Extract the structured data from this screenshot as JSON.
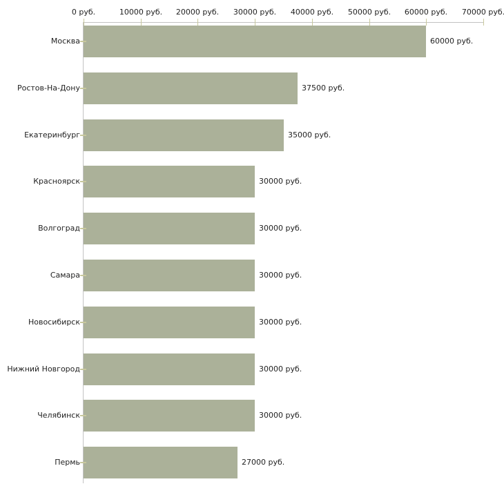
{
  "chart_data": {
    "type": "bar",
    "orientation": "horizontal",
    "title": "",
    "xlabel": "",
    "ylabel": "",
    "grid": false,
    "categories": [
      "Москва",
      "Ростов-На-Дону",
      "Екатеринбург",
      "Красноярск",
      "Волгоград",
      "Самара",
      "Новосибирск",
      "Нижний Новгород",
      "Челябинск",
      "Пермь"
    ],
    "values": [
      60000,
      37500,
      35000,
      30000,
      30000,
      30000,
      30000,
      30000,
      30000,
      27000
    ],
    "value_labels": [
      "60000 руб.",
      "37500 руб.",
      "35000 руб.",
      "30000 руб.",
      "30000 руб.",
      "30000 руб.",
      "30000 руб.",
      "30000 руб.",
      "30000 руб.",
      "27000 руб."
    ],
    "x_axis": {
      "position": "top",
      "range": [
        0,
        70000
      ],
      "tick_values": [
        0,
        10000,
        20000,
        30000,
        40000,
        50000,
        60000,
        70000
      ],
      "tick_labels": [
        "0 руб.",
        "10000 руб.",
        "20000 руб.",
        "30000 руб.",
        "40000 руб.",
        "50000 руб.",
        "60000 руб.",
        "70000 руб."
      ]
    },
    "colors": {
      "bar": "#abb199",
      "axis_line": "#c2c2c2",
      "tick_mark": "#c8c89d",
      "text": "#1f1f1f",
      "background": "#ffffff"
    }
  }
}
